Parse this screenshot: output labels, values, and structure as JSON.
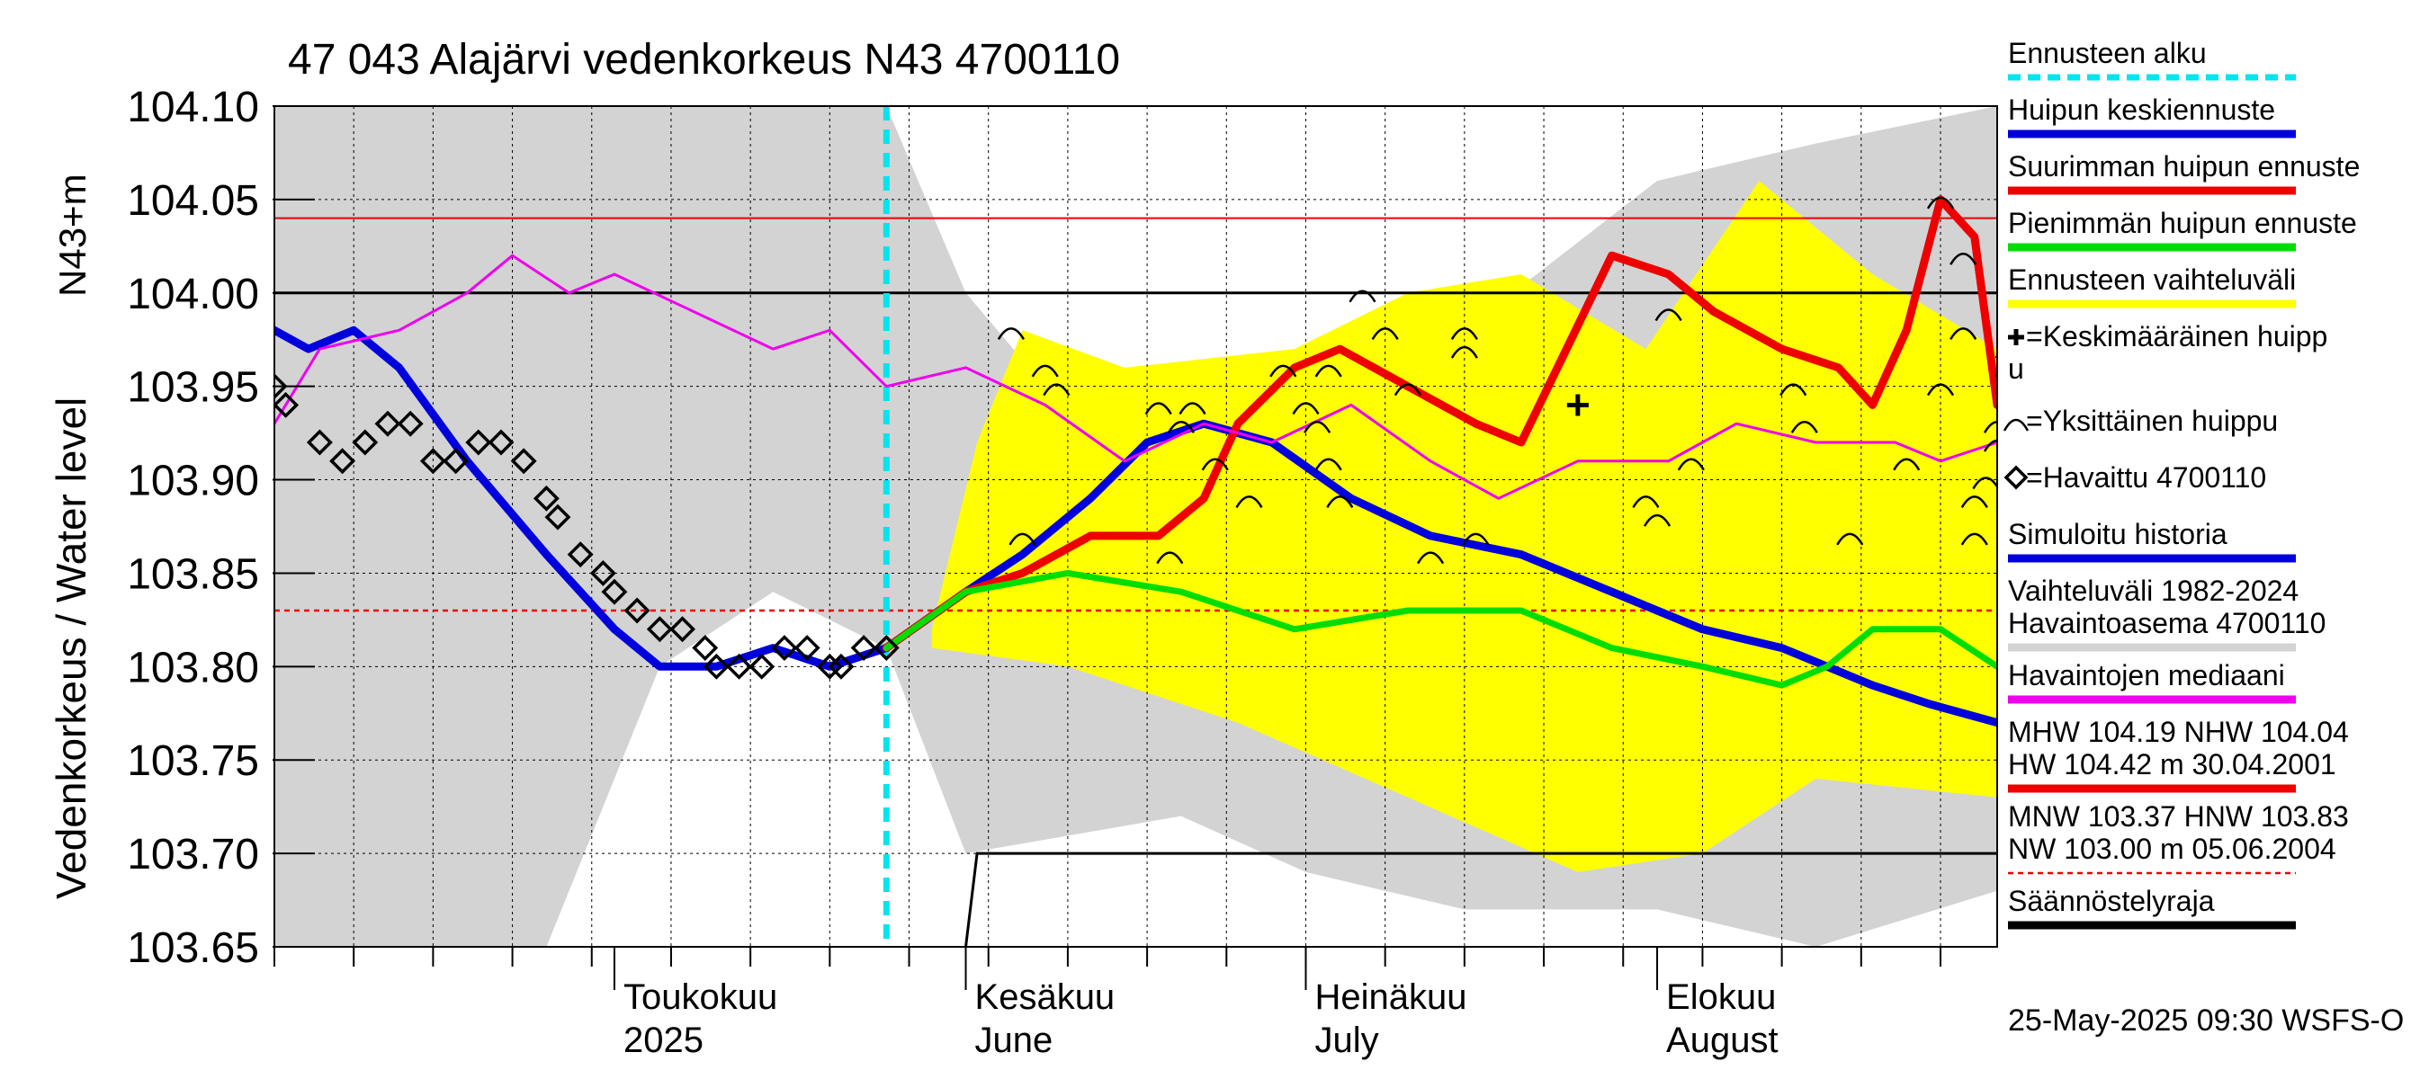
{
  "chart_data": {
    "type": "line",
    "title": "47 043 Alajärvi vedenkorkeus N43 4700110",
    "ylabel": "Vedenkorkeus / Water level",
    "ylabel_unit": "N43+m",
    "ylim": [
      103.65,
      104.1
    ],
    "y_ticks": [
      "104.10",
      "104.05",
      "104.00",
      "103.95",
      "103.90",
      "103.85",
      "103.80",
      "103.75",
      "103.70",
      "103.65"
    ],
    "x_start": "2025-04-01",
    "x_end": "2025-08-31",
    "month_labels": [
      {
        "fi": "Toukokuu",
        "en": "2025",
        "date": "2025-05-01"
      },
      {
        "fi": "Kesäkuu",
        "en": "June",
        "date": "2025-06-01"
      },
      {
        "fi": "Heinäkuu",
        "en": "July",
        "date": "2025-07-01"
      },
      {
        "fi": "Elokuu",
        "en": "August",
        "date": "2025-08-01"
      }
    ],
    "forecast_start": "2025-05-25",
    "reference_lines": {
      "mhw": 104.19,
      "nhw": 104.04,
      "mnw": 103.37,
      "hnw": 103.83,
      "median_reference": 104.0
    },
    "range_band_upper": [
      [
        "2025-04-01",
        104.1
      ],
      [
        "2025-05-25",
        104.1
      ],
      [
        "2025-06-01",
        104.0
      ],
      [
        "2025-06-15",
        103.9
      ],
      [
        "2025-07-01",
        103.96
      ],
      [
        "2025-07-15",
        103.98
      ],
      [
        "2025-08-01",
        104.06
      ],
      [
        "2025-08-15",
        104.08
      ],
      [
        "2025-08-31",
        104.1
      ]
    ],
    "range_band_lower": [
      [
        "2025-04-01",
        103.65
      ],
      [
        "2025-04-25",
        103.65
      ],
      [
        "2025-05-05",
        103.8
      ],
      [
        "2025-05-15",
        103.84
      ],
      [
        "2025-05-25",
        103.81
      ],
      [
        "2025-06-01",
        103.7
      ],
      [
        "2025-06-20",
        103.72
      ],
      [
        "2025-07-01",
        103.69
      ],
      [
        "2025-07-15",
        103.67
      ],
      [
        "2025-08-01",
        103.67
      ],
      [
        "2025-08-15",
        103.65
      ],
      [
        "2025-08-31",
        103.68
      ]
    ],
    "forecast_band_upper": [
      [
        "2025-05-29",
        103.82
      ],
      [
        "2025-06-02",
        103.92
      ],
      [
        "2025-06-06",
        103.98
      ],
      [
        "2025-06-15",
        103.96
      ],
      [
        "2025-06-30",
        103.97
      ],
      [
        "2025-07-10",
        104.0
      ],
      [
        "2025-07-20",
        104.01
      ],
      [
        "2025-07-31",
        103.97
      ],
      [
        "2025-08-10",
        104.06
      ],
      [
        "2025-08-20",
        104.01
      ],
      [
        "2025-08-31",
        103.97
      ]
    ],
    "forecast_band_lower": [
      [
        "2025-05-29",
        103.81
      ],
      [
        "2025-06-10",
        103.8
      ],
      [
        "2025-06-25",
        103.77
      ],
      [
        "2025-07-10",
        103.73
      ],
      [
        "2025-07-25",
        103.69
      ],
      [
        "2025-08-05",
        103.7
      ],
      [
        "2025-08-15",
        103.74
      ],
      [
        "2025-08-31",
        103.73
      ]
    ],
    "series": [
      {
        "name": "Huipun keskiennuste",
        "color": "#0000dd",
        "points": [
          [
            "2025-04-01",
            103.98
          ],
          [
            "2025-04-04",
            103.97
          ],
          [
            "2025-04-08",
            103.98
          ],
          [
            "2025-04-12",
            103.96
          ],
          [
            "2025-04-18",
            103.91
          ],
          [
            "2025-04-25",
            103.86
          ],
          [
            "2025-05-01",
            103.82
          ],
          [
            "2025-05-05",
            103.8
          ],
          [
            "2025-05-10",
            103.8
          ],
          [
            "2025-05-15",
            103.81
          ],
          [
            "2025-05-20",
            103.8
          ],
          [
            "2025-05-25",
            103.81
          ],
          [
            "2025-06-01",
            103.84
          ],
          [
            "2025-06-06",
            103.86
          ],
          [
            "2025-06-12",
            103.89
          ],
          [
            "2025-06-17",
            103.92
          ],
          [
            "2025-06-22",
            103.93
          ],
          [
            "2025-06-28",
            103.92
          ],
          [
            "2025-07-05",
            103.89
          ],
          [
            "2025-07-12",
            103.87
          ],
          [
            "2025-07-20",
            103.86
          ],
          [
            "2025-07-28",
            103.84
          ],
          [
            "2025-08-05",
            103.82
          ],
          [
            "2025-08-12",
            103.81
          ],
          [
            "2025-08-20",
            103.79
          ],
          [
            "2025-08-25",
            103.78
          ],
          [
            "2025-08-31",
            103.77
          ]
        ]
      },
      {
        "name": "Suurimman huipun ennuste",
        "color": "#ee0000",
        "points": [
          [
            "2025-05-25",
            103.81
          ],
          [
            "2025-06-01",
            103.84
          ],
          [
            "2025-06-06",
            103.85
          ],
          [
            "2025-06-12",
            103.87
          ],
          [
            "2025-06-18",
            103.87
          ],
          [
            "2025-06-22",
            103.89
          ],
          [
            "2025-06-25",
            103.93
          ],
          [
            "2025-06-30",
            103.96
          ],
          [
            "2025-07-04",
            103.97
          ],
          [
            "2025-07-10",
            103.95
          ],
          [
            "2025-07-16",
            103.93
          ],
          [
            "2025-07-20",
            103.92
          ],
          [
            "2025-07-24",
            103.97
          ],
          [
            "2025-07-28",
            104.02
          ],
          [
            "2025-08-02",
            104.01
          ],
          [
            "2025-08-06",
            103.99
          ],
          [
            "2025-08-12",
            103.97
          ],
          [
            "2025-08-17",
            103.96
          ],
          [
            "2025-08-20",
            103.94
          ],
          [
            "2025-08-23",
            103.98
          ],
          [
            "2025-08-26",
            104.05
          ],
          [
            "2025-08-29",
            104.03
          ],
          [
            "2025-08-31",
            103.94
          ]
        ]
      },
      {
        "name": "Pienimmän huipun ennuste",
        "color": "#00dd00",
        "points": [
          [
            "2025-05-25",
            103.81
          ],
          [
            "2025-06-01",
            103.84
          ],
          [
            "2025-06-10",
            103.85
          ],
          [
            "2025-06-20",
            103.84
          ],
          [
            "2025-06-30",
            103.82
          ],
          [
            "2025-07-10",
            103.83
          ],
          [
            "2025-07-20",
            103.83
          ],
          [
            "2025-07-28",
            103.81
          ],
          [
            "2025-08-05",
            103.8
          ],
          [
            "2025-08-12",
            103.79
          ],
          [
            "2025-08-16",
            103.8
          ],
          [
            "2025-08-20",
            103.82
          ],
          [
            "2025-08-26",
            103.82
          ],
          [
            "2025-08-31",
            103.8
          ]
        ]
      },
      {
        "name": "Havaintojen mediaani",
        "color": "#ee00ee",
        "points": [
          [
            "2025-04-01",
            103.93
          ],
          [
            "2025-04-05",
            103.97
          ],
          [
            "2025-04-12",
            103.98
          ],
          [
            "2025-04-18",
            104.0
          ],
          [
            "2025-04-22",
            104.02
          ],
          [
            "2025-04-27",
            104.0
          ],
          [
            "2025-05-01",
            104.01
          ],
          [
            "2025-05-08",
            103.99
          ],
          [
            "2025-05-15",
            103.97
          ],
          [
            "2025-05-20",
            103.98
          ],
          [
            "2025-05-25",
            103.95
          ],
          [
            "2025-06-01",
            103.96
          ],
          [
            "2025-06-08",
            103.94
          ],
          [
            "2025-06-15",
            103.91
          ],
          [
            "2025-06-22",
            103.93
          ],
          [
            "2025-06-28",
            103.92
          ],
          [
            "2025-07-05",
            103.94
          ],
          [
            "2025-07-12",
            103.91
          ],
          [
            "2025-07-18",
            103.89
          ],
          [
            "2025-07-25",
            103.91
          ],
          [
            "2025-08-02",
            103.91
          ],
          [
            "2025-08-08",
            103.93
          ],
          [
            "2025-08-15",
            103.92
          ],
          [
            "2025-08-22",
            103.92
          ],
          [
            "2025-08-26",
            103.91
          ],
          [
            "2025-08-31",
            103.92
          ]
        ]
      }
    ],
    "observed": {
      "name": "Havaittu 4700110",
      "points": [
        [
          "2025-04-01",
          103.95
        ],
        [
          "2025-04-02",
          103.94
        ],
        [
          "2025-04-05",
          103.92
        ],
        [
          "2025-04-07",
          103.91
        ],
        [
          "2025-04-09",
          103.92
        ],
        [
          "2025-04-11",
          103.93
        ],
        [
          "2025-04-13",
          103.93
        ],
        [
          "2025-04-15",
          103.91
        ],
        [
          "2025-04-17",
          103.91
        ],
        [
          "2025-04-19",
          103.92
        ],
        [
          "2025-04-21",
          103.92
        ],
        [
          "2025-04-23",
          103.91
        ],
        [
          "2025-04-25",
          103.89
        ],
        [
          "2025-04-26",
          103.88
        ],
        [
          "2025-04-28",
          103.86
        ],
        [
          "2025-04-30",
          103.85
        ],
        [
          "2025-05-01",
          103.84
        ],
        [
          "2025-05-03",
          103.83
        ],
        [
          "2025-05-05",
          103.82
        ],
        [
          "2025-05-07",
          103.82
        ],
        [
          "2025-05-09",
          103.81
        ],
        [
          "2025-05-10",
          103.8
        ],
        [
          "2025-05-12",
          103.8
        ],
        [
          "2025-05-14",
          103.8
        ],
        [
          "2025-05-16",
          103.81
        ],
        [
          "2025-05-18",
          103.81
        ],
        [
          "2025-05-20",
          103.8
        ],
        [
          "2025-05-21",
          103.8
        ],
        [
          "2025-05-23",
          103.81
        ],
        [
          "2025-05-25",
          103.81
        ]
      ]
    },
    "individual_peaks": [
      [
        "2025-06-05",
        103.98
      ],
      [
        "2025-06-08",
        103.96
      ],
      [
        "2025-06-09",
        103.95
      ],
      [
        "2025-06-06",
        103.87
      ],
      [
        "2025-06-18",
        103.94
      ],
      [
        "2025-06-19",
        103.86
      ],
      [
        "2025-06-21",
        103.94
      ],
      [
        "2025-06-20",
        103.93
      ],
      [
        "2025-06-23",
        103.91
      ],
      [
        "2025-06-26",
        103.89
      ],
      [
        "2025-06-29",
        103.96
      ],
      [
        "2025-07-01",
        103.94
      ],
      [
        "2025-07-02",
        103.93
      ],
      [
        "2025-07-03",
        103.96
      ],
      [
        "2025-07-03",
        103.91
      ],
      [
        "2025-07-04",
        103.89
      ],
      [
        "2025-07-06",
        104.0
      ],
      [
        "2025-07-08",
        103.98
      ],
      [
        "2025-07-10",
        103.95
      ],
      [
        "2025-07-12",
        103.86
      ],
      [
        "2025-07-15",
        103.98
      ],
      [
        "2025-07-15",
        103.97
      ],
      [
        "2025-07-16",
        103.87
      ],
      [
        "2025-07-31",
        103.89
      ],
      [
        "2025-08-01",
        103.88
      ],
      [
        "2025-08-02",
        103.99
      ],
      [
        "2025-08-04",
        103.91
      ],
      [
        "2025-08-13",
        103.95
      ],
      [
        "2025-08-14",
        103.93
      ],
      [
        "2025-08-18",
        103.87
      ],
      [
        "2025-08-23",
        103.91
      ],
      [
        "2025-08-26",
        104.05
      ],
      [
        "2025-08-26",
        103.95
      ],
      [
        "2025-08-28",
        104.02
      ],
      [
        "2025-08-28",
        103.98
      ],
      [
        "2025-08-31",
        103.93
      ],
      [
        "2025-08-29",
        103.87
      ],
      [
        "2025-08-29",
        103.89
      ],
      [
        "2025-08-30",
        103.9
      ],
      [
        "2025-08-31",
        103.92
      ],
      [
        "2025-09-01",
        103.97
      ],
      [
        "2025-09-01",
        103.96
      ]
    ],
    "average_peak": [
      "2025-07-25",
      103.94
    ],
    "legend": [
      {
        "label": "Ennusteen alku",
        "color": "#00e5ee",
        "style": "dashed"
      },
      {
        "label": "Huipun keskiennuste",
        "color": "#0000dd",
        "style": "line"
      },
      {
        "label": "Suurimman huipun ennuste",
        "color": "#ee0000",
        "style": "line"
      },
      {
        "label": "Pienimmän huipun ennuste",
        "color": "#00dd00",
        "style": "line"
      },
      {
        "label": "Ennusteen vaihteluväli",
        "color": "#ffff00",
        "style": "line"
      },
      {
        "label": "=Keskimääräinen huipp",
        "label2": "u",
        "style": "plus"
      },
      {
        "label": "=Yksittäinen huippu",
        "style": "arc"
      },
      {
        "label": "=Havaittu 4700110",
        "style": "diamond"
      },
      {
        "label": "Simuloitu historia",
        "color": "#0000dd",
        "style": "line"
      },
      {
        "label": "Vaihteluväli 1982-2024",
        "label2": " Havaintoasema 4700110",
        "color": "#d3d3d3",
        "style": "line"
      },
      {
        "label": "Havaintojen mediaani",
        "color": "#ee00ee",
        "style": "line"
      },
      {
        "label": "MHW 104.19 NHW 104.04",
        "label2": "HW 104.42 m 30.04.2001",
        "color": "#ee0000",
        "style": "line"
      },
      {
        "label": "MNW 103.37 HNW 103.83",
        "label2": "NW 103.00 m 05.06.2004",
        "color": "#ee0000",
        "style": "dotted"
      },
      {
        "label": "Säännöstelyraja",
        "color": "#000000",
        "style": "line"
      }
    ],
    "regulation_limit": [
      [
        "2025-06-01",
        103.65
      ],
      [
        "2025-06-02",
        103.7
      ],
      [
        "2025-08-31",
        103.7
      ]
    ],
    "footer": "25-May-2025 09:30 WSFS-O"
  }
}
